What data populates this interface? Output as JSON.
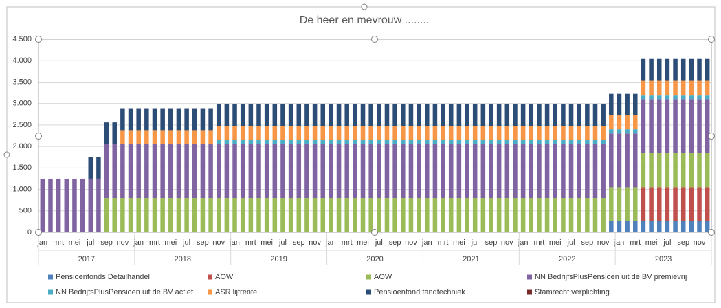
{
  "chart_data": {
    "type": "stacked_bar",
    "title": "De heer en mevrouw ........",
    "categories": [
      "jan",
      null,
      "mrt",
      null,
      "mei",
      null,
      "jul",
      null,
      "sep",
      null,
      "nov",
      null,
      "jan",
      null,
      "mrt",
      null,
      "mei",
      null,
      "jul",
      null,
      "sep",
      null,
      "nov",
      null,
      "jan",
      null,
      "mrt",
      null,
      "mei",
      null,
      "jul",
      null,
      "sep",
      null,
      "nov",
      null,
      "jan",
      null,
      "mrt",
      null,
      "mei",
      null,
      "jul",
      null,
      "sep",
      null,
      "nov",
      null,
      "jan",
      null,
      "mrt",
      null,
      "mei",
      null,
      "jul",
      null,
      "sep",
      null,
      "nov",
      null,
      "jan",
      null,
      "mrt",
      null,
      "mei",
      null,
      "jul",
      null,
      "sep",
      null,
      "nov",
      null,
      "jan",
      null,
      "mrt",
      null,
      "mei",
      null,
      "jul",
      null,
      "sep",
      null,
      "nov",
      null
    ],
    "years": [
      "2017",
      "2018",
      "2019",
      "2020",
      "2021",
      "2022",
      "2023"
    ],
    "ylim": [
      0,
      4500
    ],
    "yticks": [
      0,
      {
        "value": 500,
        "label": "500"
      },
      {
        "value": 1000,
        "label": "1.000"
      },
      {
        "value": 1500,
        "label": "1.500"
      },
      {
        "value": 2000,
        "label": "2.000"
      },
      {
        "value": 2500,
        "label": "2.500"
      },
      {
        "value": 3000,
        "label": "3.000"
      },
      {
        "value": 3500,
        "label": "3.500"
      },
      {
        "value": 4000,
        "label": "4.000"
      },
      {
        "value": 4500,
        "label": "4.500"
      }
    ],
    "grid": true,
    "legend": "bottom",
    "series": [
      {
        "name": "Pensioenfonds Detailhandel",
        "color": "#4f81bd",
        "values": [
          0,
          0,
          0,
          0,
          0,
          0,
          0,
          0,
          0,
          0,
          0,
          0,
          0,
          0,
          0,
          0,
          0,
          0,
          0,
          0,
          0,
          0,
          0,
          0,
          0,
          0,
          0,
          0,
          0,
          0,
          0,
          0,
          0,
          0,
          0,
          0,
          0,
          0,
          0,
          0,
          0,
          0,
          0,
          0,
          0,
          0,
          0,
          0,
          0,
          0,
          0,
          0,
          0,
          0,
          0,
          0,
          0,
          0,
          0,
          0,
          0,
          0,
          0,
          0,
          0,
          0,
          0,
          0,
          0,
          0,
          0,
          270,
          270,
          270,
          270,
          270,
          270,
          270,
          270,
          270,
          270,
          270,
          270,
          270
        ]
      },
      {
        "name": "AOW",
        "color": "#c0504d",
        "values": [
          0,
          0,
          0,
          0,
          0,
          0,
          0,
          0,
          0,
          0,
          0,
          0,
          0,
          0,
          0,
          0,
          0,
          0,
          0,
          0,
          0,
          0,
          0,
          0,
          0,
          0,
          0,
          0,
          0,
          0,
          0,
          0,
          0,
          0,
          0,
          0,
          0,
          0,
          0,
          0,
          0,
          0,
          0,
          0,
          0,
          0,
          0,
          0,
          0,
          0,
          0,
          0,
          0,
          0,
          0,
          0,
          0,
          0,
          0,
          0,
          0,
          0,
          0,
          0,
          0,
          0,
          0,
          0,
          0,
          0,
          0,
          0,
          0,
          0,
          0,
          780,
          780,
          780,
          780,
          780,
          780,
          780,
          780,
          780
        ]
      },
      {
        "name": "AOW",
        "color": "#9bbb59",
        "values": [
          0,
          0,
          0,
          0,
          0,
          0,
          0,
          0,
          800,
          800,
          800,
          800,
          800,
          800,
          800,
          800,
          800,
          800,
          800,
          800,
          800,
          800,
          800,
          800,
          800,
          800,
          800,
          800,
          800,
          800,
          800,
          800,
          800,
          800,
          800,
          800,
          800,
          800,
          800,
          800,
          800,
          800,
          800,
          800,
          800,
          800,
          800,
          800,
          800,
          800,
          800,
          800,
          800,
          800,
          800,
          800,
          800,
          800,
          800,
          800,
          800,
          800,
          800,
          800,
          800,
          800,
          800,
          800,
          800,
          800,
          800,
          780,
          780,
          780,
          780,
          800,
          800,
          800,
          800,
          800,
          800,
          800,
          800,
          800
        ]
      },
      {
        "name": "NN BedrijfsPlusPensioen uit de BV premievrij",
        "color": "#8064a2",
        "values": [
          1250,
          1250,
          1250,
          1250,
          1250,
          1250,
          1250,
          1250,
          1250,
          1250,
          1250,
          1250,
          1250,
          1250,
          1250,
          1250,
          1250,
          1250,
          1250,
          1250,
          1250,
          1250,
          1250,
          1250,
          1250,
          1250,
          1250,
          1250,
          1250,
          1250,
          1250,
          1250,
          1250,
          1250,
          1250,
          1250,
          1250,
          1250,
          1250,
          1250,
          1250,
          1250,
          1250,
          1250,
          1250,
          1250,
          1250,
          1250,
          1250,
          1250,
          1250,
          1250,
          1250,
          1250,
          1250,
          1250,
          1250,
          1250,
          1250,
          1250,
          1250,
          1250,
          1250,
          1250,
          1250,
          1250,
          1250,
          1250,
          1250,
          1250,
          1250,
          1250,
          1250,
          1250,
          1250,
          1250,
          1250,
          1250,
          1250,
          1250,
          1250,
          1250,
          1250,
          1250
        ]
      },
      {
        "name": "NN BedrijfsPlusPensioen uit de BV actief",
        "color": "#4bacc6",
        "values": [
          0,
          0,
          0,
          0,
          0,
          0,
          0,
          0,
          0,
          0,
          0,
          0,
          0,
          0,
          0,
          0,
          0,
          0,
          0,
          0,
          0,
          0,
          100,
          100,
          100,
          100,
          100,
          100,
          100,
          100,
          100,
          100,
          100,
          100,
          100,
          100,
          100,
          100,
          100,
          100,
          100,
          100,
          100,
          100,
          100,
          100,
          100,
          100,
          100,
          100,
          100,
          100,
          100,
          100,
          100,
          100,
          100,
          100,
          100,
          100,
          100,
          100,
          100,
          100,
          100,
          100,
          100,
          100,
          100,
          100,
          100,
          100,
          100,
          100,
          100,
          100,
          100,
          100,
          100,
          100,
          100,
          100,
          100,
          100
        ]
      },
      {
        "name": "ASR lijfrente",
        "color": "#f79646",
        "values": [
          0,
          0,
          0,
          0,
          0,
          0,
          0,
          0,
          0,
          0,
          330,
          330,
          330,
          330,
          330,
          330,
          330,
          330,
          330,
          330,
          330,
          330,
          330,
          330,
          330,
          330,
          330,
          330,
          330,
          330,
          330,
          330,
          330,
          330,
          330,
          330,
          330,
          330,
          330,
          330,
          330,
          330,
          330,
          330,
          330,
          330,
          330,
          330,
          330,
          330,
          330,
          330,
          330,
          330,
          330,
          330,
          330,
          330,
          330,
          330,
          330,
          330,
          330,
          330,
          330,
          330,
          330,
          330,
          330,
          330,
          330,
          330,
          330,
          330,
          330,
          330,
          330,
          330,
          330,
          330,
          330,
          330,
          330,
          330
        ]
      },
      {
        "name": "Pensioenfond tandtechniek",
        "color": "#2c4d75",
        "values": [
          0,
          0,
          0,
          0,
          0,
          0,
          510,
          510,
          510,
          510,
          510,
          510,
          510,
          510,
          510,
          510,
          510,
          510,
          510,
          510,
          510,
          510,
          510,
          510,
          510,
          510,
          510,
          510,
          510,
          510,
          510,
          510,
          510,
          510,
          510,
          510,
          510,
          510,
          510,
          510,
          510,
          510,
          510,
          510,
          510,
          510,
          510,
          510,
          510,
          510,
          510,
          510,
          510,
          510,
          510,
          510,
          510,
          510,
          510,
          510,
          510,
          510,
          510,
          510,
          510,
          510,
          510,
          510,
          510,
          510,
          510,
          510,
          510,
          510,
          510,
          510,
          510,
          510,
          510,
          510,
          510,
          510,
          510,
          510
        ]
      },
      {
        "name": "Stamrecht verplichting",
        "color": "#772c2a",
        "values": [
          0,
          0,
          0,
          0,
          0,
          0,
          0,
          0,
          0,
          0,
          0,
          0,
          0,
          0,
          0,
          0,
          0,
          0,
          0,
          0,
          0,
          0,
          0,
          0,
          0,
          0,
          0,
          0,
          0,
          0,
          0,
          0,
          0,
          0,
          0,
          0,
          0,
          0,
          0,
          0,
          0,
          0,
          0,
          0,
          0,
          0,
          0,
          0,
          0,
          0,
          0,
          0,
          0,
          0,
          0,
          0,
          0,
          0,
          0,
          0,
          0,
          0,
          0,
          0,
          0,
          0,
          0,
          0,
          0,
          0,
          0,
          0,
          0,
          0,
          0,
          0,
          0,
          0,
          0,
          0,
          0,
          0,
          0,
          0
        ]
      }
    ]
  }
}
